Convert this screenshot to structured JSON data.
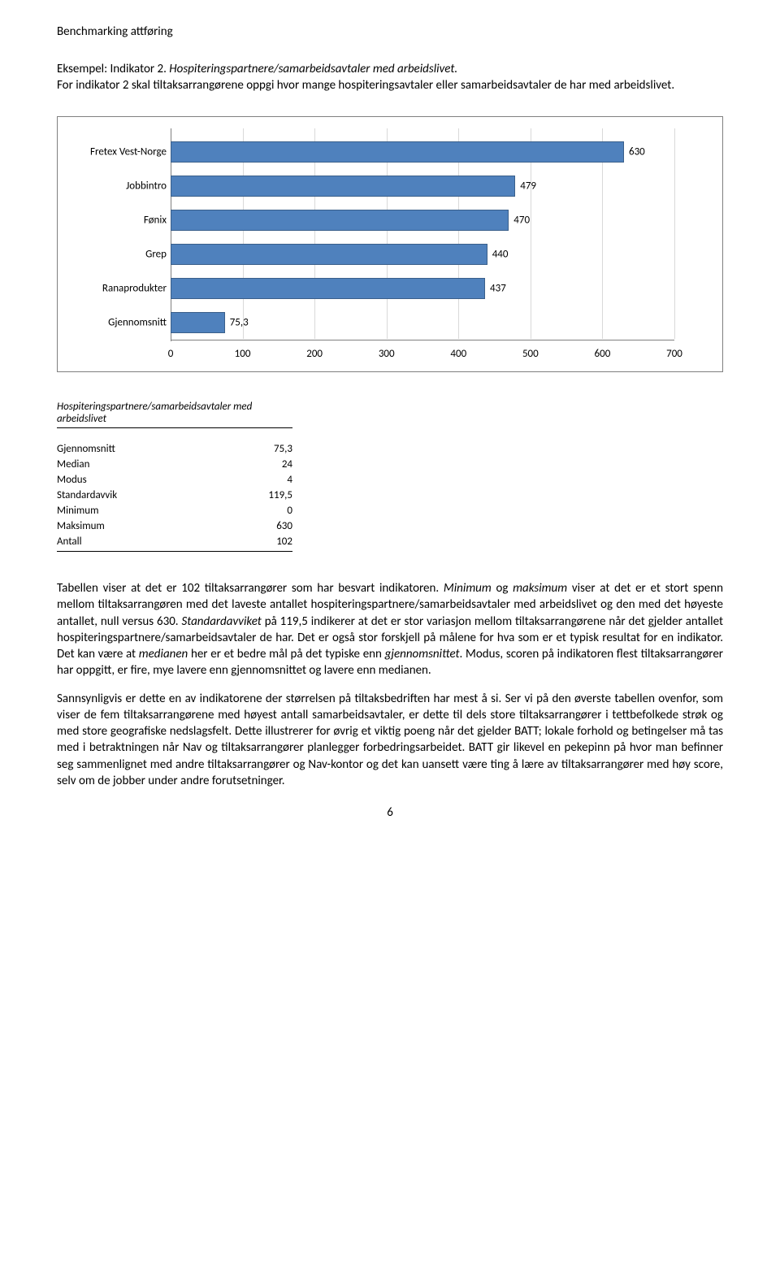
{
  "header": "Benchmarking attføring",
  "intro": {
    "line1_prefix": "Eksempel: Indikator 2. ",
    "line1_em": "Hospiteringspartnere/samarbeidsavtaler med arbeidslivet.",
    "line2": "For indikator 2 skal tiltaksarrangørene oppgi hvor mange hospiteringsavtaler eller samarbeidsavtaler de har med arbeidslivet."
  },
  "chart": {
    "type": "bar",
    "categories": [
      "Fretex Vest-Norge",
      "Jobbintro",
      "Fønix",
      "Grep",
      "Ranaprodukter",
      "Gjennomsnitt"
    ],
    "values": [
      630,
      479,
      470,
      440,
      437,
      75.3
    ],
    "value_labels": [
      "630",
      "479",
      "470",
      "440",
      "437",
      "75,3"
    ],
    "bar_color": "#4f81bd",
    "bar_border": "#3a5f8a",
    "ticks": [
      0,
      100,
      200,
      300,
      400,
      500,
      600,
      700
    ],
    "xmax": 700,
    "grid_color": "#d9d9d9",
    "label_fontsize": 13
  },
  "stats": {
    "title": "Hospiteringspartnere/samarbeidsavtaler med arbeidslivet",
    "rows": [
      {
        "label": "Gjennomsnitt",
        "value": "75,3"
      },
      {
        "label": "Median",
        "value": "24"
      },
      {
        "label": "Modus",
        "value": "4"
      },
      {
        "label": "Standardavvik",
        "value": "119,5"
      },
      {
        "label": "Minimum",
        "value": "0"
      },
      {
        "label": "Maksimum",
        "value": "630"
      },
      {
        "label": "Antall",
        "value": "102"
      }
    ]
  },
  "para1": {
    "t1": "Tabellen viser at det er 102 tiltaksarrangører som har besvart indikatoren. ",
    "em1": "Minimum",
    "t2": " og ",
    "em2": "maksimum",
    "t3": " viser at det er et stort spenn mellom tiltaksarrangøren med det laveste antallet hospiteringspartnere/samarbeidsavtaler med arbeidslivet og den med det høyeste antallet, null versus 630. ",
    "em3": "Standardavviket",
    "t4": " på 119,5 indikerer at det er stor variasjon mellom tiltaksarrangørene når det gjelder antallet hospiteringspartnere/samarbeidsavtaler de har. Det er også stor forskjell på målene for hva som er et typisk resultat for en indikator. Det kan være at ",
    "em4": "medianen",
    "t5": " her er et bedre mål på det typiske enn ",
    "em5": "gjennomsnittet",
    "t6": ". Modus, scoren på indikatoren flest tiltaksarrangører har oppgitt, er fire, mye lavere enn gjennomsnittet og lavere enn medianen."
  },
  "para2": "Sannsynligvis er dette en av indikatorene der størrelsen på tiltaksbedriften har mest å si. Ser vi på den øverste tabellen ovenfor, som viser de fem tiltaksarrangørene med høyest antall samarbeidsavtaler, er dette til dels store tiltaksarrangører i tettbefolkede strøk og med store geografiske nedslagsfelt. Dette illustrerer for øvrig et viktig poeng når det gjelder BATT; lokale forhold og betingelser må tas med i betraktningen når Nav og tiltaksarrangører planlegger forbedringsarbeidet. BATT gir likevel en pekepinn på hvor man befinner seg sammenlignet med andre tiltaksarrangører og Nav-kontor og det kan uansett være ting å lære av tiltaksarrangører med høy score, selv om de jobber under andre forutsetninger.",
  "page_number": "6"
}
